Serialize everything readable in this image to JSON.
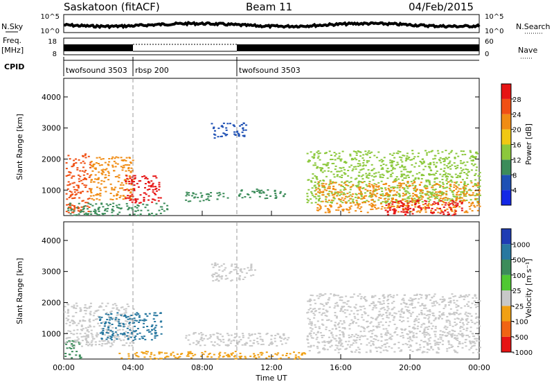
{
  "header": {
    "station": "Saskatoon (fitACF)",
    "beam": "Beam 11",
    "date": "04/Feb/2015"
  },
  "nsky_panel": {
    "left_label": "N.Sky",
    "left_ticks": [
      "10^5",
      "10^0"
    ],
    "right_ticks": [
      "10^5",
      "10^0"
    ],
    "right_label": "N.Search"
  },
  "freq_panel": {
    "left_label_top": "Freq.",
    "left_label_bottom": "[MHz]",
    "left_ticks": [
      "18",
      "8"
    ],
    "right_ticks": [
      "60",
      "0"
    ],
    "right_label": "Nave"
  },
  "cpid": {
    "label": "CPID",
    "segments": [
      {
        "name": "twofsound 3503",
        "start_hour": 0
      },
      {
        "name": "rbsp 200",
        "start_hour": 4
      },
      {
        "name": "twofsound 3503",
        "start_hour": 10
      }
    ]
  },
  "axes": {
    "y_label": "Slant Range [km]",
    "y_ticks": [
      "1000",
      "2000",
      "3000",
      "4000"
    ],
    "x_label": "Time UT",
    "x_ticks": [
      "00:00",
      "04:00",
      "08:00",
      "12:00",
      "16:00",
      "20:00",
      "00:00"
    ]
  },
  "power_scale": {
    "label": "Power [dB]",
    "ticks": [
      "4",
      "8",
      "12",
      "16",
      "20",
      "24",
      "28"
    ],
    "colors": [
      "#1428e6",
      "#1e50b4",
      "#3c8c5a",
      "#8cc83c",
      "#f0c814",
      "#f08c14",
      "#f05014",
      "#e61414"
    ]
  },
  "velocity_scale": {
    "label": "Velocity [m s⁻¹]",
    "ticks": [
      "1000",
      "500",
      "100",
      "25",
      "-25",
      "-100",
      "-500",
      "-1000"
    ],
    "colors": [
      "#1e3cb4",
      "#2878a0",
      "#3c8c5a",
      "#50c832",
      "#c8c8c8",
      "#f0a014",
      "#f06414",
      "#e61414"
    ]
  },
  "chart_data": {
    "type": "heatmap",
    "x_range_hours": [
      0,
      24
    ],
    "y_range_km": [
      180,
      4600
    ],
    "vertical_markers_hours": [
      4,
      10
    ],
    "power_regions": [
      {
        "t0": 0.1,
        "t1": 1.5,
        "r0": 300,
        "r1": 2200,
        "value_db": 26
      },
      {
        "t0": 1.5,
        "t1": 4.0,
        "r0": 700,
        "r1": 2100,
        "value_db": 22
      },
      {
        "t0": 3.5,
        "t1": 5.6,
        "r0": 600,
        "r1": 1500,
        "value_db": 28
      },
      {
        "t0": 0.2,
        "t1": 6.0,
        "r0": 200,
        "r1": 600,
        "value_db": 10
      },
      {
        "t0": 7.0,
        "t1": 9.5,
        "r0": 650,
        "r1": 950,
        "value_db": 10
      },
      {
        "t0": 10.0,
        "t1": 12.8,
        "r0": 750,
        "r1": 1050,
        "value_db": 8
      },
      {
        "t0": 8.5,
        "t1": 10.5,
        "r0": 2700,
        "r1": 3200,
        "value_db": 6
      },
      {
        "t0": 14.0,
        "t1": 24.0,
        "r0": 600,
        "r1": 2300,
        "value_db": 14
      },
      {
        "t0": 14.5,
        "t1": 24.0,
        "r0": 300,
        "r1": 1300,
        "value_db": 22
      },
      {
        "t0": 18.5,
        "t1": 23.0,
        "r0": 200,
        "r1": 700,
        "value_db": 28
      }
    ],
    "velocity_regions": [
      {
        "t0": 0.0,
        "t1": 1.0,
        "r0": 200,
        "r1": 800,
        "value_ms": 120
      },
      {
        "t0": 0.0,
        "t1": 4.0,
        "r0": 600,
        "r1": 2000,
        "value_ms": 0
      },
      {
        "t0": 2.0,
        "t1": 5.6,
        "r0": 800,
        "r1": 1700,
        "value_ms": 700
      },
      {
        "t0": 7.0,
        "t1": 13.0,
        "r0": 600,
        "r1": 1050,
        "value_ms": 0
      },
      {
        "t0": 8.5,
        "t1": 11.0,
        "r0": 2700,
        "r1": 3300,
        "value_ms": 0
      },
      {
        "t0": 14.0,
        "t1": 24.0,
        "r0": 400,
        "r1": 2300,
        "value_ms": 0
      },
      {
        "t0": 3.0,
        "t1": 14.0,
        "r0": 200,
        "r1": 450,
        "value_ms": -80
      }
    ]
  }
}
